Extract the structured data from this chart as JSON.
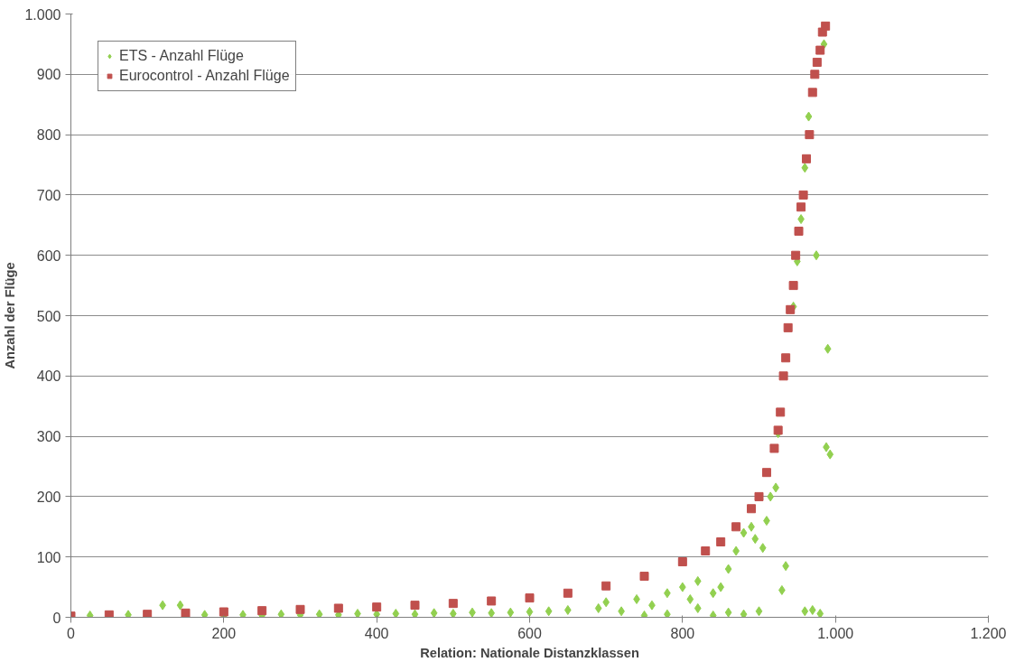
{
  "chart_data": {
    "type": "scatter",
    "xlabel": "Relation: Nationale Distanzklassen",
    "ylabel": "Anzahl der Flüge",
    "xlim": [
      0,
      1200
    ],
    "ylim": [
      0,
      1000
    ],
    "xticks": [
      0,
      200,
      400,
      600,
      800,
      {
        "value": 1000,
        "label": "1.000"
      },
      {
        "value": 1200,
        "label": "1.200"
      }
    ],
    "yticks": [
      0,
      100,
      200,
      300,
      400,
      500,
      600,
      700,
      800,
      900,
      {
        "value": 1000,
        "label": "1.000"
      }
    ],
    "grid": "y",
    "legend": "top left",
    "series": [
      {
        "name": "ETS - Anzahl Flüge",
        "color": "#92d050",
        "marker": "diamond",
        "x": [
          25,
          75,
          120,
          143,
          175,
          200,
          225,
          250,
          275,
          300,
          325,
          350,
          375,
          400,
          425,
          450,
          475,
          500,
          525,
          550,
          575,
          600,
          625,
          650,
          690,
          700,
          720,
          740,
          750,
          760,
          780,
          780,
          800,
          810,
          820,
          820,
          840,
          840,
          850,
          860,
          860,
          870,
          880,
          880,
          890,
          895,
          900,
          905,
          910,
          915,
          922,
          925,
          930,
          935,
          945,
          950,
          955,
          960,
          960,
          965,
          970,
          975,
          980,
          985,
          988,
          990,
          993
        ],
        "values": [
          3,
          4,
          20,
          20,
          4,
          3,
          4,
          3,
          5,
          4,
          5,
          4,
          6,
          5,
          6,
          5,
          7,
          6,
          8,
          7,
          8,
          9,
          10,
          12,
          15,
          25,
          10,
          30,
          3,
          20,
          5,
          40,
          50,
          30,
          15,
          60,
          3,
          40,
          50,
          8,
          80,
          110,
          5,
          140,
          150,
          130,
          10,
          115,
          160,
          200,
          215,
          305,
          45,
          85,
          515,
          590,
          660,
          10,
          745,
          830,
          12,
          600,
          6,
          950,
          282,
          445,
          270
        ]
      },
      {
        "name": "Eurocontrol - Anzahl Flüge",
        "color": "#c0504d",
        "marker": "square",
        "x": [
          0,
          50,
          100,
          150,
          200,
          250,
          300,
          350,
          400,
          450,
          500,
          550,
          600,
          650,
          700,
          750,
          800,
          830,
          850,
          870,
          890,
          900,
          910,
          920,
          925,
          928,
          932,
          935,
          938,
          941,
          945,
          948,
          952,
          955,
          958,
          962,
          966,
          970,
          973,
          976,
          980,
          983,
          987
        ],
        "values": [
          2,
          4,
          5,
          7,
          9,
          11,
          13,
          15,
          17,
          20,
          23,
          27,
          32,
          40,
          52,
          68,
          92,
          110,
          125,
          150,
          180,
          200,
          240,
          280,
          310,
          340,
          400,
          430,
          480,
          510,
          550,
          600,
          640,
          680,
          700,
          760,
          800,
          870,
          900,
          920,
          940,
          970,
          980
        ]
      }
    ]
  }
}
